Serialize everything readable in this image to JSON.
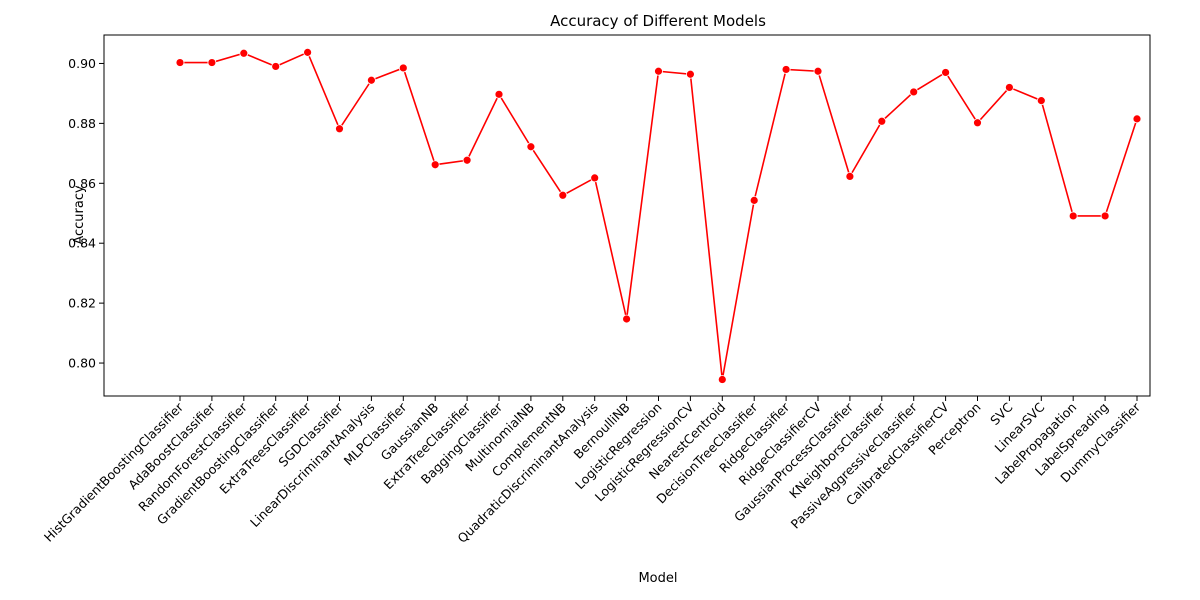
{
  "chart_data": {
    "type": "line",
    "title": "Accuracy of Different Models",
    "xlabel": "Model",
    "ylabel": "Accuracy",
    "ylim": [
      0.789,
      0.9095
    ],
    "yticks": [
      "0.80",
      "0.82",
      "0.84",
      "0.86",
      "0.88",
      "0.90"
    ],
    "line_color": "#ff0000",
    "grid": false,
    "categories": [
      "HistGradientBoostingClassifier",
      "AdaBoostClassifier",
      "RandomForestClassifier",
      "GradientBoostingClassifier",
      "ExtraTreesClassifier",
      "SGDClassifier",
      "LinearDiscriminantAnalysis",
      "MLPClassifier",
      "GaussianNB",
      "ExtraTreeClassifier",
      "BaggingClassifier",
      "MultinomialNB",
      "ComplementNB",
      "QuadraticDiscriminantAnalysis",
      "BernoulliNB",
      "LogisticRegression",
      "LogisticRegressionCV",
      "NearestCentroid",
      "DecisionTreeClassifier",
      "RidgeClassifier",
      "RidgeClassifierCV",
      "GaussianProcessClassifier",
      "KNeighborsClassifier",
      "PassiveAggressiveClassifier",
      "CalibratedClassifierCV",
      "Perceptron",
      "SVC",
      "LinearSVC",
      "LabelPropagation",
      "LabelSpreading",
      "DummyClassifier"
    ],
    "values": [
      0.9003,
      0.9003,
      0.9034,
      0.899,
      0.9037,
      0.8782,
      0.8944,
      0.8985,
      0.8662,
      0.8677,
      0.8897,
      0.8722,
      0.856,
      0.8618,
      0.8147,
      0.8974,
      0.8964,
      0.7945,
      0.8543,
      0.898,
      0.8974,
      0.8623,
      0.8807,
      0.8905,
      0.897,
      0.8802,
      0.892,
      0.8876,
      0.8491,
      0.8491,
      0.8815
    ]
  }
}
